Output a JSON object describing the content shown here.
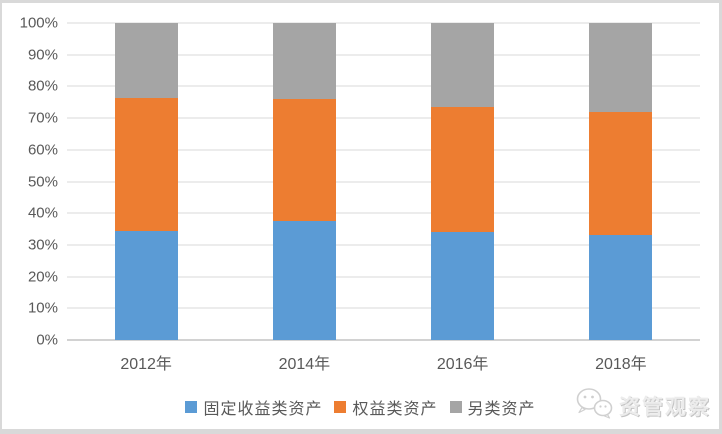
{
  "chart_data": {
    "type": "bar",
    "variant": "stacked-100-percent",
    "title": "",
    "xlabel": "",
    "ylabel": "",
    "ylim": [
      0,
      100
    ],
    "grid": true,
    "legend_position": "bottom",
    "categories": [
      "2012年",
      "2014年",
      "2016年",
      "2018年"
    ],
    "series": [
      {
        "key": "fixed-income",
        "name": "固定收益类资产",
        "color": "#5B9BD5",
        "values": [
          34.5,
          37.5,
          34,
          33
        ]
      },
      {
        "key": "equity",
        "name": "权益类资产",
        "color": "#ED7D31",
        "values": [
          42,
          38.5,
          39.5,
          39
        ]
      },
      {
        "key": "alternative",
        "name": "另类资产",
        "color": "#A5A5A5",
        "values": [
          23.5,
          24,
          26.5,
          28
        ]
      }
    ],
    "y_ticks": [
      {
        "value": 0,
        "label": "0%"
      },
      {
        "value": 10,
        "label": "10%"
      },
      {
        "value": 20,
        "label": "20%"
      },
      {
        "value": 30,
        "label": "30%"
      },
      {
        "value": 40,
        "label": "40%"
      },
      {
        "value": 50,
        "label": "50%"
      },
      {
        "value": 60,
        "label": "60%"
      },
      {
        "value": 70,
        "label": "70%"
      },
      {
        "value": 80,
        "label": "80%"
      },
      {
        "value": 90,
        "label": "90%"
      },
      {
        "value": 100,
        "label": "100%"
      }
    ]
  },
  "watermark": {
    "label": "资管观察",
    "icon": "wechat-icon"
  },
  "colors": {
    "frame_border": "#d9d9d9",
    "gridline": "#d9d9d9",
    "axis_text": "#595959",
    "watermark_text": "#ececec"
  }
}
